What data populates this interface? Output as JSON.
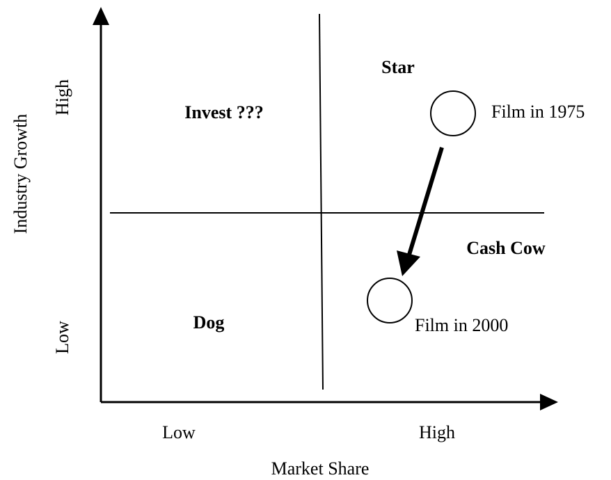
{
  "axes": {
    "y_label": "Industry Growth",
    "y_high": "High",
    "y_low": "Low",
    "x_label": "Market Share",
    "x_low": "Low",
    "x_high": "High"
  },
  "quadrants": {
    "top_left": "Invest ???",
    "top_right": "Star",
    "bottom_left": "Dog",
    "bottom_right": "Cash Cow"
  },
  "nodes": [
    {
      "label": "Film in 1975"
    },
    {
      "label": "Film in 2000"
    }
  ]
}
